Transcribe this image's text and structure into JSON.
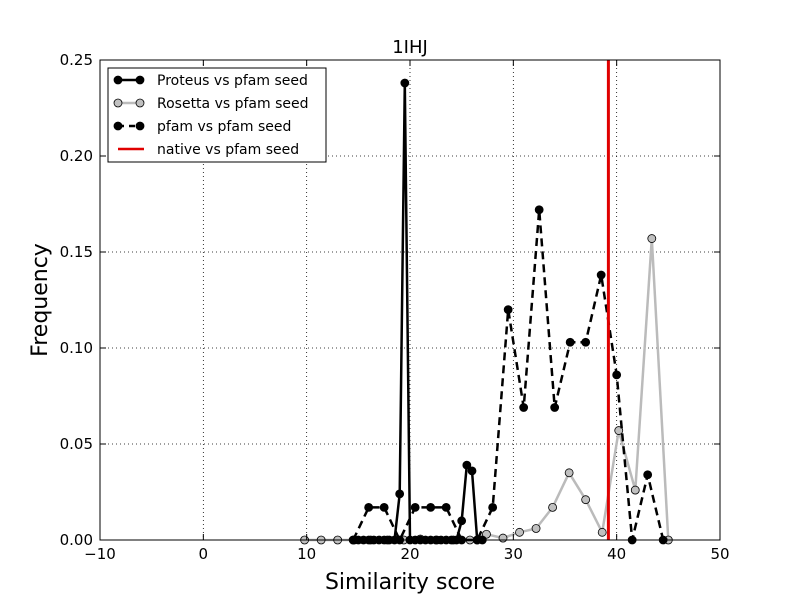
{
  "chart_data": {
    "type": "line",
    "title": "1IHJ",
    "xlabel": "Similarity score",
    "ylabel": "Frequency",
    "xlim": [
      -10,
      50
    ],
    "ylim": [
      0,
      0.25
    ],
    "xticks": [
      "−10",
      "0",
      "10",
      "20",
      "30",
      "40",
      "50"
    ],
    "yticks": [
      "0.00",
      "0.05",
      "0.10",
      "0.15",
      "0.20",
      "0.25"
    ],
    "grid": true,
    "legend_position": "top-left",
    "series": [
      {
        "name": "Proteus vs pfam seed",
        "color": "#000000",
        "style": "solid",
        "marker_fill": "#000000",
        "x": [
          14.5,
          15.0,
          15.5,
          16.0,
          16.5,
          17.0,
          17.5,
          18.0,
          18.5,
          19.0,
          19.5,
          20.0,
          20.5,
          21.0,
          21.5,
          22.0,
          22.5,
          23.0,
          23.5,
          24.0,
          24.5,
          25.0,
          25.5,
          26.0,
          26.5,
          27.0
        ],
        "y": [
          0,
          0,
          0,
          0,
          0,
          0,
          0,
          0,
          0,
          0.024,
          0.238,
          0,
          0,
          0,
          0,
          0,
          0,
          0,
          0,
          0,
          0,
          0.01,
          0.039,
          0.036,
          0,
          0
        ]
      },
      {
        "name": "Rosetta vs pfam seed",
        "color": "#bbbbbb",
        "style": "solid",
        "marker_fill": "#c0c0c0",
        "x": [
          9.8,
          11.4,
          13.0,
          14.6,
          16.2,
          17.8,
          19.4,
          21.0,
          22.6,
          24.2,
          25.8,
          27.4,
          29.0,
          30.6,
          32.2,
          33.8,
          35.4,
          37.0,
          38.6,
          40.2,
          41.8,
          43.4,
          45.0
        ],
        "y": [
          0,
          0,
          0,
          0,
          0,
          0,
          0,
          0.0005,
          0,
          0,
          0,
          0.003,
          0.001,
          0.004,
          0.006,
          0.017,
          0.035,
          0.021,
          0.004,
          0.057,
          0.026,
          0.157,
          0
        ]
      },
      {
        "name": "pfam vs pfam seed",
        "color": "#000000",
        "style": "dashed",
        "marker_fill": "#000000",
        "x": [
          14.5,
          16.0,
          17.5,
          19.0,
          20.5,
          22.0,
          23.5,
          25.0,
          26.5,
          28.0,
          29.5,
          31.0,
          32.5,
          34.0,
          35.5,
          37.0,
          38.5,
          40.0,
          41.5,
          43.0,
          44.5
        ],
        "y": [
          0,
          0.017,
          0.017,
          0,
          0.017,
          0.017,
          0.017,
          0,
          0,
          0.017,
          0.12,
          0.069,
          0.172,
          0.069,
          0.103,
          0.103,
          0.138,
          0.086,
          0,
          0.034,
          0
        ]
      }
    ],
    "native": {
      "name": "native vs pfam seed",
      "color": "#e00000",
      "x": 39.2
    }
  }
}
